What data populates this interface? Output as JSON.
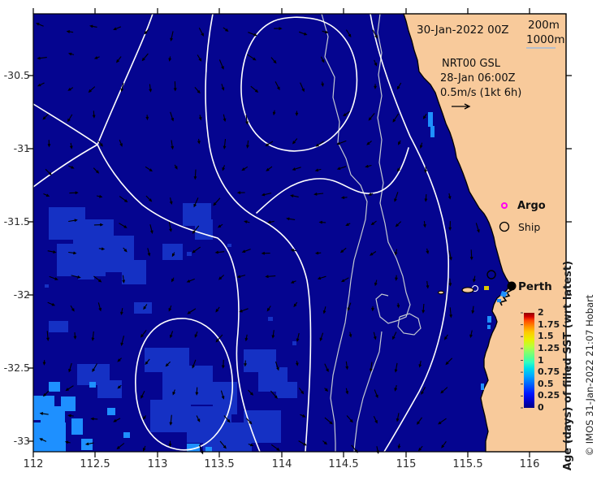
{
  "header": {
    "timestamp": "30-Jan-2022 00Z"
  },
  "isobath_legend": {
    "depth1": "200m",
    "depth2": "1000m"
  },
  "velocity_key": {
    "model": "NRT00 GSL",
    "valid_time": "28-Jan 06:00Z",
    "scale": "0.5m/s (1kt 6h)"
  },
  "station_legend": {
    "argo": "Argo",
    "ship": "Ship"
  },
  "map": {
    "city": "Perth"
  },
  "x_axis": {
    "ticks": [
      "112",
      "112.5",
      "113",
      "113.5",
      "114",
      "114.5",
      "115",
      "115.5",
      "116"
    ]
  },
  "y_axis": {
    "ticks": [
      "-30.5",
      "-31",
      "-31.5",
      "-32",
      "-32.5",
      "-33"
    ]
  },
  "colorbar": {
    "label": "Age (days) of filled SST (wrt latest)",
    "ticks": [
      "2",
      "1.75",
      "1.5",
      "1.25",
      "1",
      "0.75",
      "0.5",
      "0.25",
      "0"
    ]
  },
  "credit": "© IMOS 31-Jan-2022 21:07 Hobart",
  "colors": {
    "ocean": "#050590",
    "land": "#F8CA9B",
    "age_young_patch": "#1531C4",
    "age_quarter_patch": "#1E90FF",
    "argo_marker": "#FF00F0",
    "gsl_contour": "#FFFFFF",
    "bathymetry_contour": "#C3C9D2"
  },
  "chart_data": {
    "type": "map",
    "region": "Southwest Western Australia coastal ocean near Perth",
    "projection_axes": {
      "longitude_ticks_degE": [
        112,
        112.5,
        113,
        113.5,
        114,
        114.5,
        115,
        115.5,
        116
      ],
      "latitude_ticks_degN": [
        -30.5,
        -31,
        -31.5,
        -32,
        -32.5,
        -33
      ]
    },
    "colorbar": {
      "label": "Age (days) of filled SST (wrt latest)",
      "range": [
        0,
        2
      ],
      "tick_step": 0.25,
      "colormap": "jet"
    },
    "overlays": [
      "GSL sea-level white contours",
      "200m and 1000m depth contours",
      "current vector arrows 0.5m/s (1kt 6h)",
      "Argo and Ship station legend"
    ],
    "city_marker": "Perth",
    "analysis_time": "30-Jan-2022 00Z",
    "gsl_time": "28-Jan 06:00Z"
  }
}
